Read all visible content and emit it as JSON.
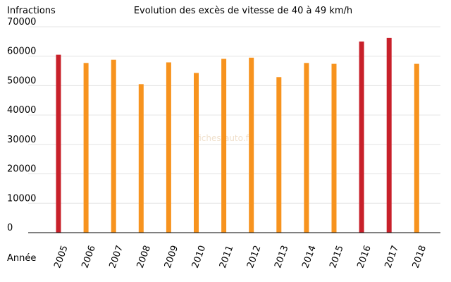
{
  "chart_data": {
    "type": "bar",
    "title": "Evolution des excès de vitesse de 40 à 49 km/h",
    "ylabel": "Infractions",
    "xlabel": "Année",
    "watermark": "fiches-auto.fr",
    "ylim": [
      0,
      70000
    ],
    "yticks": [
      0,
      10000,
      20000,
      30000,
      40000,
      50000,
      60000,
      70000
    ],
    "grid": true,
    "categories": [
      "2005",
      "2006",
      "2007",
      "2008",
      "2009",
      "2010",
      "2011",
      "2012",
      "2013",
      "2014",
      "2015",
      "2016",
      "2017",
      "2018"
    ],
    "values": [
      60500,
      57700,
      58800,
      50500,
      57900,
      54300,
      59100,
      59500,
      52900,
      57700,
      57400,
      65000,
      66200,
      57400
    ],
    "bar_colors": [
      "#c8202a",
      "#f7931e",
      "#f7931e",
      "#f7931e",
      "#f7931e",
      "#f7931e",
      "#f7931e",
      "#f7931e",
      "#f7931e",
      "#f7931e",
      "#f7931e",
      "#c8202a",
      "#c8202a",
      "#f7931e"
    ]
  }
}
